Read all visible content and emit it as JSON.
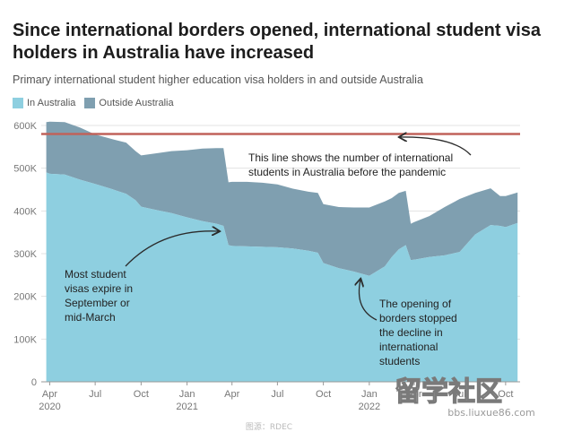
{
  "header": {
    "title": "Since international borders opened, international student visa holders in Australia have increased",
    "subtitle": "Primary international student higher education visa holders in and outside Australia"
  },
  "colors": {
    "in_australia": "#8ecfe0",
    "outside_australia": "#7f9fb0",
    "reference_line": "#c0625a",
    "annotation": "#2b2b2b"
  },
  "watermark": {
    "logo_text": "留学社区",
    "url": "bbs.liuxue86.com",
    "caption": "图源：RDEC"
  },
  "chart_data": {
    "type": "area",
    "stacked": true,
    "grid": true,
    "legend_position": "top-left",
    "title": "Since international borders opened, international student visa holders in Australia have increased",
    "subtitle": "Primary international student higher education visa holders in and outside Australia",
    "xlabel": "",
    "ylabel": "",
    "ylim": [
      0,
      600000
    ],
    "y_ticks": [
      {
        "value": 0,
        "label": "0"
      },
      {
        "value": 100000,
        "label": "100K"
      },
      {
        "value": 200000,
        "label": "200K"
      },
      {
        "value": 300000,
        "label": "300K"
      },
      {
        "value": 400000,
        "label": "400K"
      },
      {
        "value": 500000,
        "label": "500K"
      },
      {
        "value": 600000,
        "label": "600K"
      }
    ],
    "x_ticks": [
      {
        "x": "2020-04",
        "label": "Apr",
        "year": "2020"
      },
      {
        "x": "2020-07",
        "label": "Jul",
        "year": ""
      },
      {
        "x": "2020-10",
        "label": "Oct",
        "year": ""
      },
      {
        "x": "2021-01",
        "label": "Jan",
        "year": "2021"
      },
      {
        "x": "2021-04",
        "label": "Apr",
        "year": ""
      },
      {
        "x": "2021-07",
        "label": "Jul",
        "year": ""
      },
      {
        "x": "2021-10",
        "label": "Oct",
        "year": ""
      },
      {
        "x": "2022-01",
        "label": "Jan",
        "year": "2022"
      },
      {
        "x": "2022-04",
        "label": "Apr",
        "year": ""
      },
      {
        "x": "2022-07",
        "label": "Jul",
        "year": ""
      },
      {
        "x": "2022-10",
        "label": "Oct",
        "year": ""
      }
    ],
    "legend": [
      "In Australia",
      "Outside Australia"
    ],
    "x": [
      "2020-03-25",
      "2020-04-01",
      "2020-05-01",
      "2020-06-01",
      "2020-07-01",
      "2020-08-01",
      "2020-09-01",
      "2020-09-20",
      "2020-10-01",
      "2020-11-01",
      "2020-12-01",
      "2021-01-01",
      "2021-02-01",
      "2021-03-01",
      "2021-03-15",
      "2021-03-25",
      "2021-04-01",
      "2021-05-01",
      "2021-06-01",
      "2021-07-01",
      "2021-08-01",
      "2021-09-01",
      "2021-09-20",
      "2021-10-01",
      "2021-11-01",
      "2021-12-01",
      "2022-01-01",
      "2022-02-01",
      "2022-02-15",
      "2022-03-01",
      "2022-03-15",
      "2022-03-25",
      "2022-04-01",
      "2022-05-01",
      "2022-06-01",
      "2022-07-01",
      "2022-08-01",
      "2022-09-01",
      "2022-09-20",
      "2022-10-01",
      "2022-10-25"
    ],
    "series": [
      {
        "name": "In Australia",
        "values": [
          490000,
          487000,
          485000,
          473000,
          463000,
          452000,
          440000,
          425000,
          410000,
          402000,
          395000,
          385000,
          376000,
          370000,
          365000,
          320000,
          318000,
          317000,
          316000,
          315000,
          312000,
          307000,
          302000,
          278000,
          266000,
          258000,
          248000,
          270000,
          292000,
          310000,
          320000,
          285000,
          286000,
          292000,
          296000,
          304000,
          345000,
          367000,
          365000,
          362000,
          372000
        ]
      },
      {
        "name": "Outside Australia",
        "values": [
          118000,
          122000,
          123000,
          122000,
          116000,
          117000,
          120000,
          115000,
          120000,
          133000,
          145000,
          157000,
          170000,
          177000,
          182000,
          147000,
          150000,
          151000,
          150000,
          147000,
          140000,
          138000,
          140000,
          138000,
          143000,
          150000,
          160000,
          152000,
          138000,
          132000,
          127000,
          85000,
          88000,
          96000,
          113000,
          124000,
          97000,
          86000,
          70000,
          73000,
          71000
        ]
      }
    ],
    "reference_line": {
      "value": 580000,
      "label": "This line shows the number of international students in Australia before the pandemic"
    },
    "annotations": [
      {
        "id": "expire",
        "lines": [
          "Most student",
          "visas expire in",
          "September or",
          "mid-March"
        ]
      },
      {
        "id": "borders",
        "lines": [
          "The opening of",
          "borders stopped",
          "the decline in",
          "international",
          "students"
        ]
      },
      {
        "id": "pandemic",
        "lines": [
          "This line shows the number of international",
          "students in Australia before the pandemic"
        ]
      }
    ]
  }
}
